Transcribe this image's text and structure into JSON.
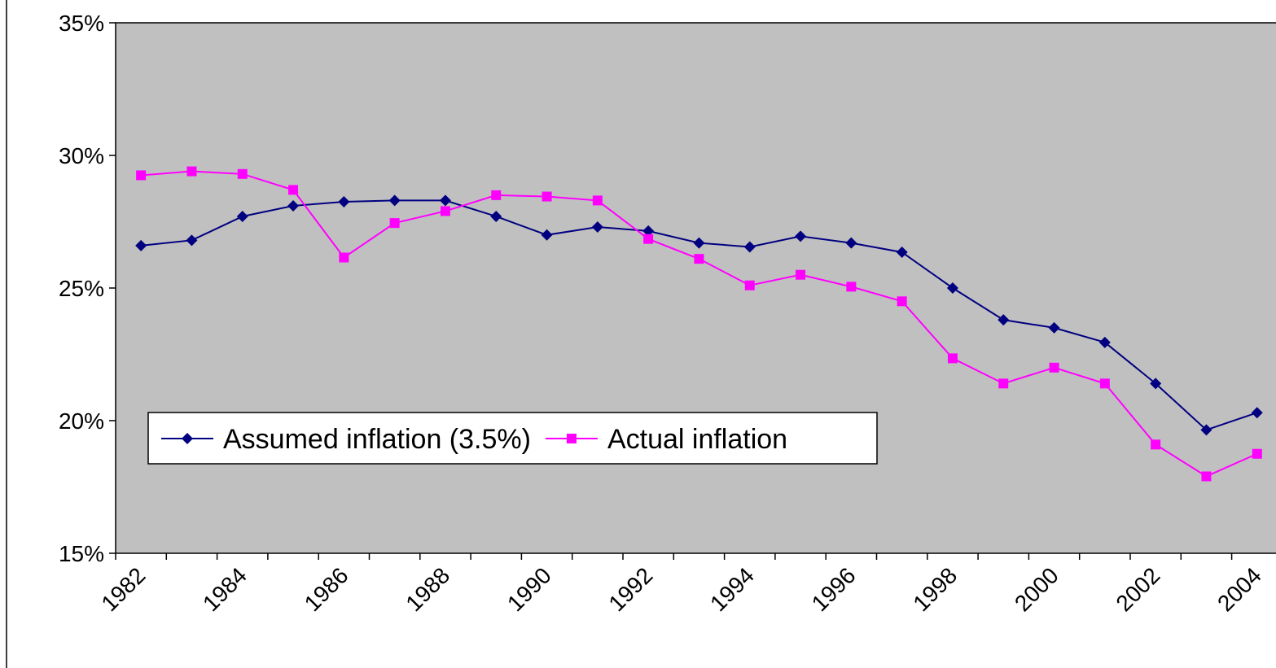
{
  "chart_data": {
    "type": "line",
    "categories": [
      "1982",
      null,
      "1984",
      null,
      "1986",
      null,
      "1988",
      null,
      "1990",
      null,
      "1992",
      null,
      "1994",
      null,
      "1996",
      null,
      "1998",
      null,
      "2000",
      null,
      "2002",
      null,
      "2004"
    ],
    "series": [
      {
        "name": "Assumed inflation (3.5%)",
        "color": "#000080",
        "marker": "diamond",
        "values": [
          26.6,
          26.8,
          27.7,
          28.1,
          28.25,
          28.3,
          28.3,
          27.7,
          27.0,
          27.3,
          27.15,
          26.7,
          26.55,
          26.95,
          26.7,
          26.35,
          25.0,
          23.8,
          23.5,
          22.95,
          21.4,
          19.65,
          20.3
        ]
      },
      {
        "name": "Actual inflation",
        "color": "#ff00ff",
        "marker": "square",
        "values": [
          29.25,
          29.4,
          29.3,
          28.7,
          26.15,
          27.45,
          27.9,
          28.5,
          28.45,
          28.3,
          26.85,
          26.1,
          25.1,
          25.5,
          25.05,
          24.5,
          22.35,
          21.4,
          22.0,
          21.4,
          19.1,
          17.9,
          18.75
        ]
      }
    ],
    "ylim": [
      15,
      35
    ],
    "yticks": [
      {
        "value": 15,
        "label": "15%"
      },
      {
        "value": 20,
        "label": "20%"
      },
      {
        "value": 25,
        "label": "25%"
      },
      {
        "value": 30,
        "label": "30%"
      },
      {
        "value": 35,
        "label": "35%"
      }
    ],
    "plot_background": "#c0c0c0"
  }
}
